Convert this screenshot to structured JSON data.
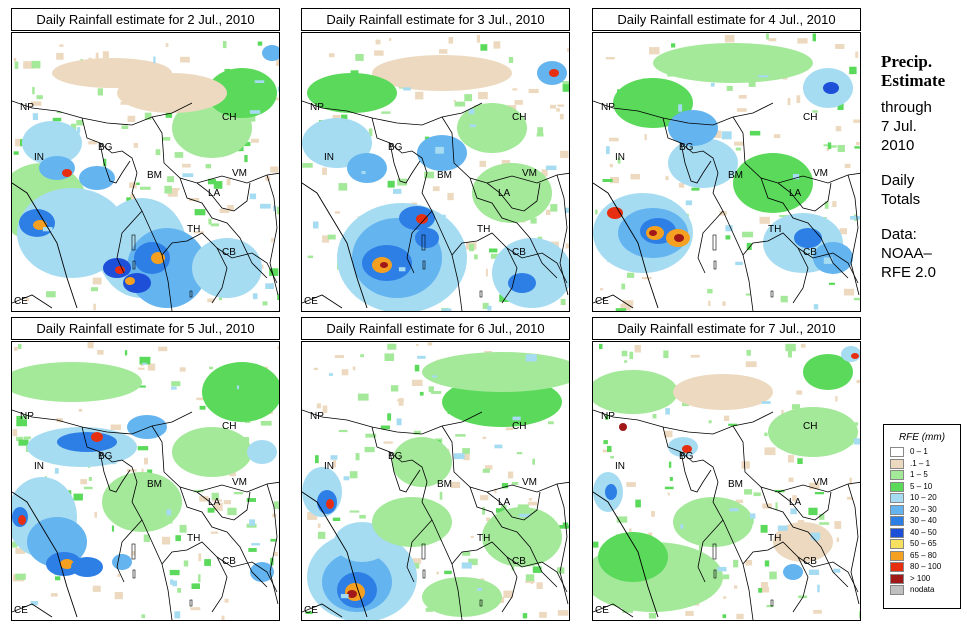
{
  "panels": [
    {
      "title": "Daily Rainfall estimate for  2 Jul., 2010",
      "intensity": "heavy-sw"
    },
    {
      "title": "Daily Rainfall estimate for  3 Jul., 2010",
      "intensity": "bay-core"
    },
    {
      "title": "Daily Rainfall estimate for  4 Jul., 2010",
      "intensity": "bay-west"
    },
    {
      "title": "Daily Rainfall estimate for  5 Jul., 2010",
      "intensity": "west"
    },
    {
      "title": "Daily Rainfall estimate for  6 Jul., 2010",
      "intensity": "south-bay"
    },
    {
      "title": "Daily Rainfall estimate for  7 Jul., 2010",
      "intensity": "dry"
    }
  ],
  "map_labels": {
    "np": "NP",
    "ch": "CH",
    "in": "IN",
    "bg": "BG",
    "bm": "BM",
    "vm": "VM",
    "la": "LA",
    "th": "TH",
    "cb": "CB",
    "ce": "CE"
  },
  "sidebar": {
    "title_line1": "Precip.",
    "title_line2": "Estimate",
    "through": "through",
    "date_line1": "7 Jul.",
    "date_line2": "2010",
    "totals_line1": "Daily",
    "totals_line2": "Totals",
    "data_line1": "Data:",
    "data_line2": "NOAA–",
    "data_line3": "RFE 2.0"
  },
  "legend": {
    "title": "RFE (mm)",
    "items": [
      {
        "label": "0 – 1",
        "color": "#ffffff"
      },
      {
        "label": ".1 – 1",
        "color": "#ecd9bf"
      },
      {
        "label": "1 – 5",
        "color": "#a4e89a"
      },
      {
        "label": "5 – 10",
        "color": "#5ad95a"
      },
      {
        "label": "10 – 20",
        "color": "#a6dcf2"
      },
      {
        "label": "20 – 30",
        "color": "#64b4f0"
      },
      {
        "label": "30 – 40",
        "color": "#2d7fe6"
      },
      {
        "label": "40 – 50",
        "color": "#1d4fd8"
      },
      {
        "label": "50 – 65",
        "color": "#f5e060"
      },
      {
        "label": "65 – 80",
        "color": "#f5a020"
      },
      {
        "label": "80 – 100",
        "color": "#e52f10"
      },
      {
        "label": "> 100",
        "color": "#a01818"
      },
      {
        "label": "nodata",
        "color": "#c0c0c0"
      }
    ]
  }
}
